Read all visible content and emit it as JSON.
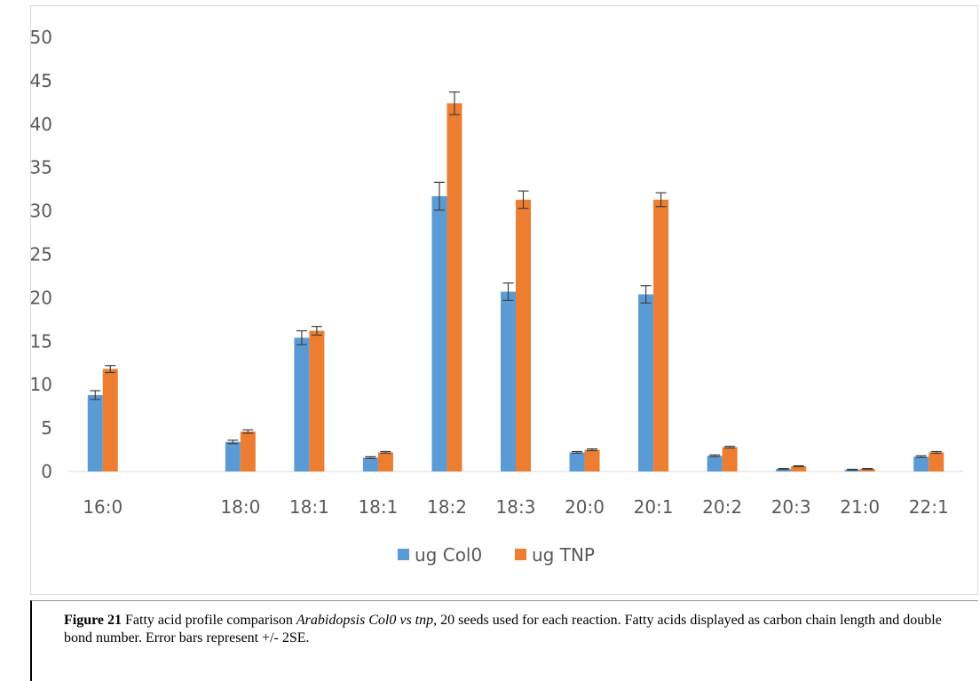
{
  "chart_data": {
    "type": "bar",
    "categories": [
      "16:0",
      "",
      "18:0",
      "18:1",
      "18:1",
      "18:2",
      "18:3",
      "20:0",
      "20:1",
      "20:2",
      "20:3",
      "21:0",
      "22:1"
    ],
    "series": [
      {
        "name": "ug Col0",
        "color": "#5b9bd5",
        "values": [
          8.8,
          null,
          3.4,
          15.4,
          1.6,
          31.7,
          20.7,
          2.2,
          20.4,
          1.8,
          0.3,
          0.2,
          1.7
        ],
        "errors": [
          0.5,
          null,
          0.2,
          0.8,
          0.1,
          1.6,
          1.0,
          0.1,
          1.0,
          0.1,
          0.05,
          0.05,
          0.1
        ]
      },
      {
        "name": "ug TNP",
        "color": "#ed7d31",
        "values": [
          11.8,
          null,
          4.6,
          16.2,
          2.2,
          42.4,
          31.3,
          2.5,
          31.3,
          2.8,
          0.6,
          0.3,
          2.2
        ],
        "errors": [
          0.4,
          null,
          0.2,
          0.5,
          0.1,
          1.3,
          1.0,
          0.1,
          0.8,
          0.1,
          0.05,
          0.05,
          0.1
        ]
      }
    ],
    "ylim": [
      0,
      50
    ],
    "yticks": [
      0,
      5,
      10,
      15,
      20,
      25,
      30,
      35,
      40,
      45,
      50
    ],
    "grid": false,
    "legend_position": "bottom",
    "title": "",
    "xlabel": "",
    "ylabel": ""
  },
  "caption": {
    "label": "Figure 21",
    "text_1": " Fatty acid profile comparison ",
    "italic": "Arabidopsis Col0 vs tnp,",
    "text_2": " 20 seeds used for each reaction. Fatty acids displayed as carbon chain length and double bond number. Error bars represent +/- 2SE."
  }
}
